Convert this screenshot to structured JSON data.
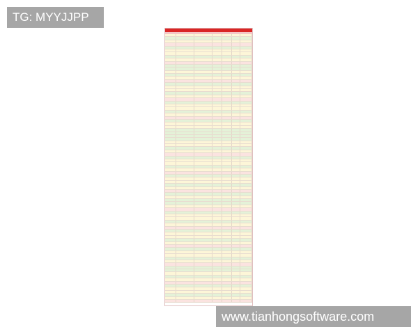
{
  "watermarks": {
    "top_left": "TG: MYYJJPP",
    "bottom_right": "www.tianhongsoftware.com"
  },
  "colors": {
    "sheet_header": "#d92626",
    "row_yellow": "#fdf6d8",
    "row_green": "#e4f2d8",
    "row_pink": "#fbe3e0",
    "watermark_bg": "#a6a6a6"
  }
}
